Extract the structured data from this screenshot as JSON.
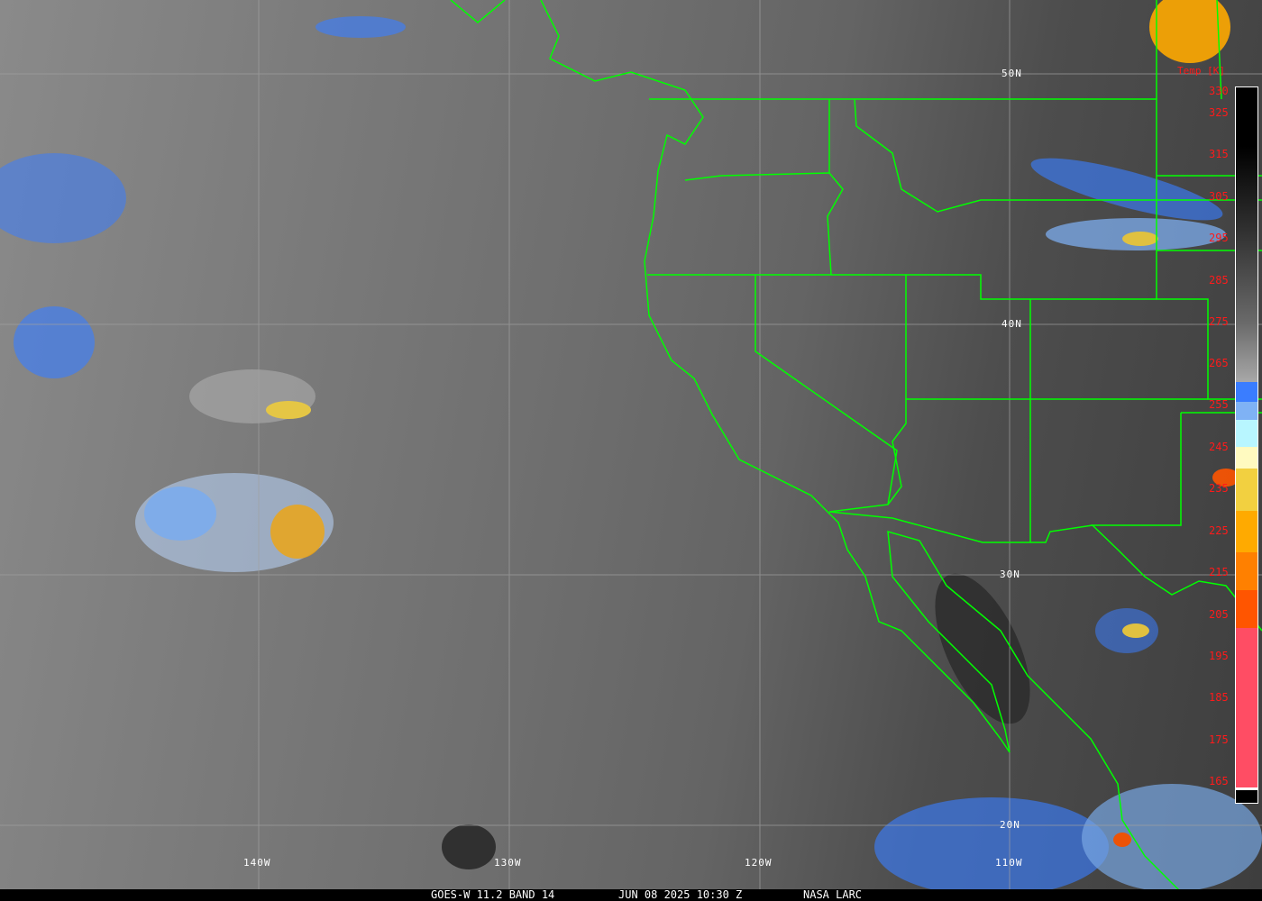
{
  "caption": {
    "product": "GOES-W 11.2 BAND 14",
    "datetime": "JUN 08 2025 10:30 Z",
    "source": "NASA LARC"
  },
  "grid_labels": {
    "lat": [
      "50N",
      "40N",
      "30N",
      "20N"
    ],
    "lon": [
      "140W",
      "130W",
      "120W",
      "110W"
    ]
  },
  "colorbar": {
    "title": "Temp [K]",
    "ticks": [
      "330",
      "325",
      "315",
      "305",
      "295",
      "285",
      "275",
      "265",
      "255",
      "245",
      "235",
      "225",
      "215",
      "205",
      "195",
      "185",
      "175",
      "165"
    ],
    "colors": {
      "gray_top": "#000000",
      "gray_bottom": "#a8a8a8",
      "blue": "#3a7dff",
      "light_blue": "#7fb2f5",
      "cyan": "#b8f6ff",
      "pale_yellow": "#fffac0",
      "yellow": "#f2d040",
      "amber": "#ffaa00",
      "orange": "#ff8000",
      "red_orange": "#ff5500",
      "pink": "#ff4d64"
    }
  },
  "colors": {
    "borders": "#00ff00",
    "gridlines": "#a0a0a0"
  }
}
